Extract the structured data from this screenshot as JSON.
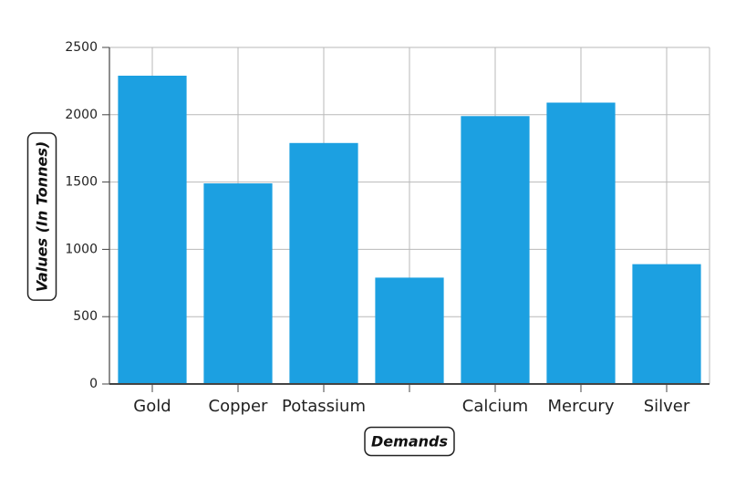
{
  "chart_data": {
    "type": "bar",
    "title": "",
    "xlabel": "Demands",
    "ylabel": "Values (In Tonnes)",
    "categories": [
      "Gold",
      "Copper",
      "Potassium",
      "",
      "Calcium",
      "Mercury",
      "Silver"
    ],
    "values": [
      2290,
      1490,
      1790,
      790,
      1990,
      2090,
      890
    ],
    "ylim": [
      0,
      2500
    ],
    "yticks": [
      0,
      500,
      1000,
      1500,
      2000,
      2500
    ],
    "grid": true,
    "legend": "none",
    "colors": {
      "bar": "#1ca0e1",
      "grid": "#b9b9b9",
      "axis": "#444444"
    }
  }
}
